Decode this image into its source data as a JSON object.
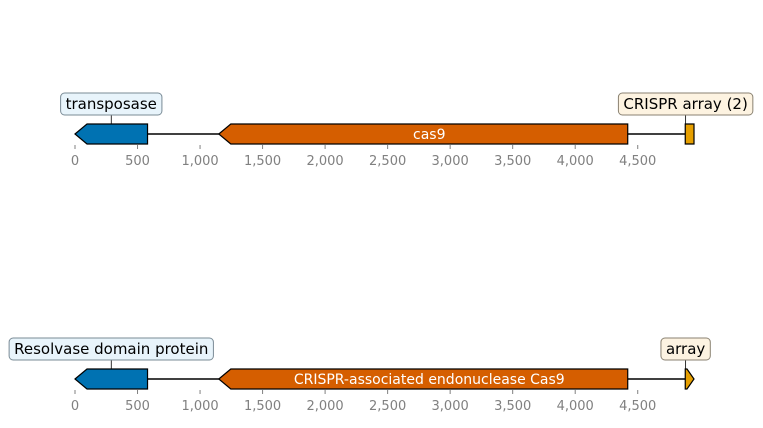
{
  "chart_data": {
    "type": "gene-map",
    "tick_values": [
      0,
      500,
      1000,
      1500,
      2000,
      2500,
      3000,
      3500,
      4000,
      4500
    ],
    "tick_labels": [
      "0",
      "500",
      "1,000",
      "1,500",
      "2,000",
      "2,500",
      "3,000",
      "3,500",
      "4,000",
      "4,500"
    ],
    "xlim": [
      0,
      4950
    ],
    "colors": {
      "blue": "#0072b2",
      "orange": "#d55e00",
      "gold": "#e69f00",
      "callout_blue_fill": "#e8f4fb",
      "callout_orange_fill": "#fdf3e1",
      "callout_blue_border": "#7a8b96",
      "callout_orange_border": "#8a8272"
    },
    "tracks": [
      {
        "features": [
          {
            "start": 0,
            "end": 580,
            "strand": -1,
            "color": "blue",
            "label": "",
            "callout": "transposase",
            "callout_color": "blue"
          },
          {
            "start": 1150,
            "end": 4420,
            "strand": -1,
            "color": "orange",
            "label": "cas9",
            "callout": "",
            "callout_color": ""
          },
          {
            "start": 4880,
            "end": 4950,
            "strand": 0,
            "color": "gold",
            "label": "",
            "callout": "CRISPR array (2)",
            "callout_color": "orange"
          }
        ]
      },
      {
        "features": [
          {
            "start": 0,
            "end": 580,
            "strand": -1,
            "color": "blue",
            "label": "",
            "callout": "Resolvase domain protein",
            "callout_color": "blue"
          },
          {
            "start": 1150,
            "end": 4420,
            "strand": -1,
            "color": "orange",
            "label": "CRISPR-associated endonuclease Cas9",
            "callout": "",
            "callout_color": ""
          },
          {
            "start": 4880,
            "end": 4950,
            "strand": 1,
            "color": "gold",
            "label": "",
            "callout": "array",
            "callout_color": "orange"
          }
        ]
      }
    ]
  }
}
